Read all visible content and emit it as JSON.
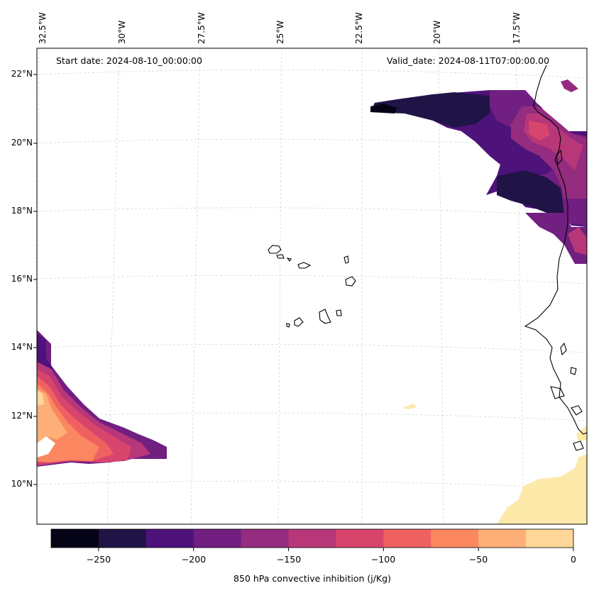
{
  "map": {
    "start_label": "Start date: 2024-08-10_00:00:00",
    "valid_label": "Valid_date: 2024-08-11T07:00:00.00",
    "lon_labels": [
      "32.5°W",
      "30°W",
      "27.5°W",
      "25°W",
      "22.5°W",
      "20°W",
      "17.5°W"
    ],
    "lat_labels": [
      "22°N",
      "20°N",
      "18°N",
      "16°N",
      "14°N",
      "12°N",
      "10°N"
    ]
  },
  "colorbar": {
    "title": "850 hPa convective inhibition (j/Kg)",
    "tick_labels": [
      "−250",
      "−200",
      "−150",
      "−100",
      "−50",
      "0"
    ],
    "levels": [
      -275,
      -250,
      -225,
      -200,
      -175,
      -150,
      -125,
      -100,
      -75,
      -50,
      -25,
      0
    ],
    "colors": [
      "#050416",
      "#201446",
      "#4e127b",
      "#711f81",
      "#942c80",
      "#b73779",
      "#d8456c",
      "#ef6160",
      "#fb8761",
      "#feaf77",
      "#fed799",
      "#fde9a9"
    ]
  }
}
